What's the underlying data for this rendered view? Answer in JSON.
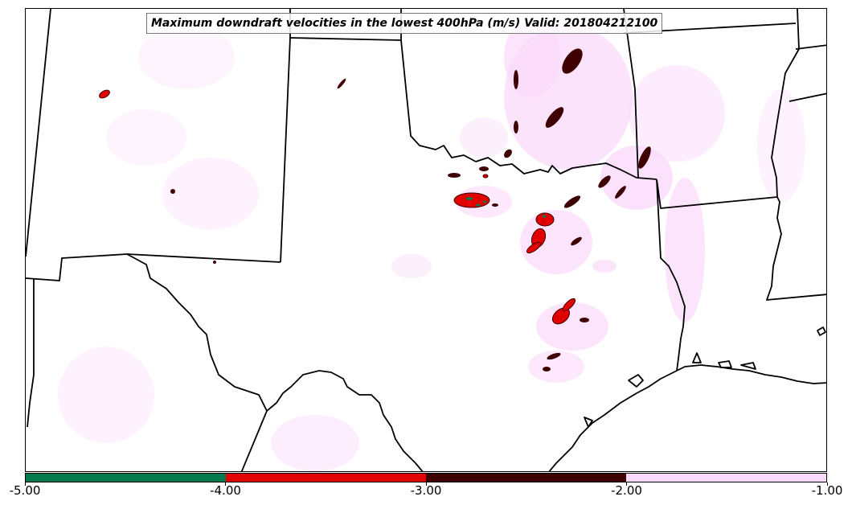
{
  "title": "Maximum downdraft velocities in the lowest 400hPa (m/s) Valid: 201804212100",
  "colorbar": {
    "colors": [
      "#027a4e",
      "#e00000",
      "#3e0000",
      "#fbd9fb"
    ],
    "labels": [
      "-5.00",
      "-4.00",
      "-3.00",
      "-2.00",
      "-1.00"
    ]
  },
  "map": {
    "land_color": "#ffffff",
    "boundary_color": "#000000",
    "light_shading_color": "#fbd9fb"
  }
}
